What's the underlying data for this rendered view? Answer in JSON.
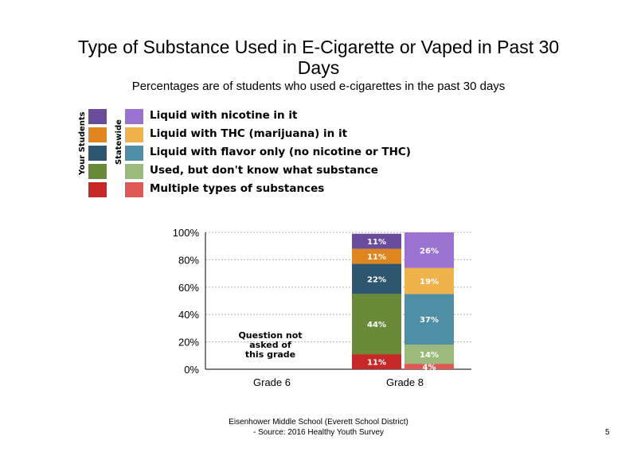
{
  "title_line1": "Type of Substance Used in E-Cigarette or Vaped in Past 30",
  "title_line2": "Days",
  "subtitle": "Percentages are of students who used e-cigarettes in the past 30 days",
  "legend": {
    "your_students_label": "Your Students",
    "statewide_label": "Statewide",
    "items": [
      {
        "label": "Liquid with nicotine in it",
        "your_color": "#6a4c9c",
        "state_color": "#9b72cf"
      },
      {
        "label": "Liquid with THC (marijuana) in it",
        "your_color": "#e0861f",
        "state_color": "#f0b24a"
      },
      {
        "label": "Liquid with flavor only (no nicotine or THC)",
        "your_color": "#2e566f",
        "state_color": "#4e8fa5"
      },
      {
        "label": "Used, but don't know what substance",
        "your_color": "#6a8a3a",
        "state_color": "#9cba7b"
      },
      {
        "label": "Multiple types of substances",
        "your_color": "#c62828",
        "state_color": "#e05a55"
      }
    ]
  },
  "chart_data": {
    "type": "bar",
    "stacked": true,
    "categories": [
      "Grade 6",
      "Grade 8"
    ],
    "ylim": [
      0,
      100
    ],
    "yticks": [
      "0%",
      "20%",
      "40%",
      "60%",
      "80%",
      "100%"
    ],
    "grid": true,
    "not_asked_note": [
      "Question not",
      "asked of",
      "this grade"
    ],
    "bars": [
      {
        "category": "Grade 8",
        "group": "Your Students",
        "stack": [
          {
            "name": "Multiple types of substances",
            "value": 11,
            "label": "11%"
          },
          {
            "name": "Used, but don't know what substance",
            "value": 44,
            "label": "44%"
          },
          {
            "name": "Liquid with flavor only (no nicotine or THC)",
            "value": 22,
            "label": "22%"
          },
          {
            "name": "Liquid with THC (marijuana) in it",
            "value": 11,
            "label": "11%"
          },
          {
            "name": "Liquid with nicotine in it",
            "value": 11,
            "label": "11%"
          }
        ]
      },
      {
        "category": "Grade 8",
        "group": "Statewide",
        "stack": [
          {
            "name": "Multiple types of substances",
            "value": 4,
            "label": "4%"
          },
          {
            "name": "Used, but don't know what substance",
            "value": 14,
            "label": "14%"
          },
          {
            "name": "Liquid with flavor only (no nicotine or THC)",
            "value": 37,
            "label": "37%"
          },
          {
            "name": "Liquid with THC (marijuana) in it",
            "value": 19,
            "label": "19%"
          },
          {
            "name": "Liquid with nicotine in it",
            "value": 26,
            "label": "26%"
          }
        ]
      }
    ]
  },
  "footer_line1": "Eisenhower Middle School (Everett School District)",
  "footer_line2": "- Source: 2016 Healthy Youth Survey",
  "page_number": "5"
}
